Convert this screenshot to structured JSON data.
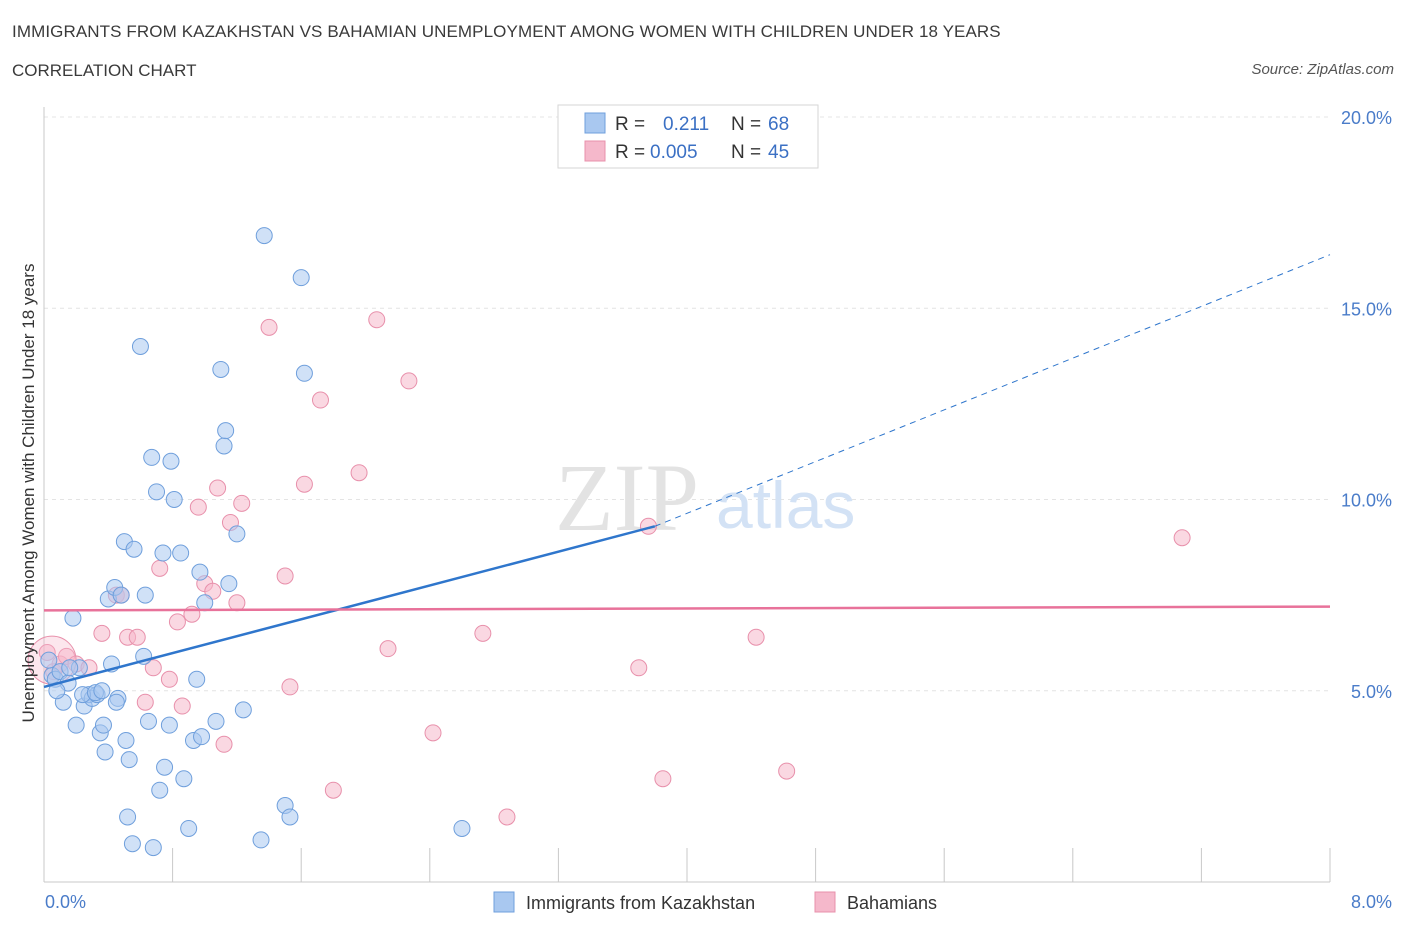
{
  "header": {
    "title": "IMMIGRANTS FROM KAZAKHSTAN VS BAHAMIAN UNEMPLOYMENT AMONG WOMEN WITH CHILDREN UNDER 18 YEARS",
    "subtitle": "CORRELATION CHART",
    "source": "Source: ZipAtlas.com"
  },
  "watermark": {
    "part1": "ZIP",
    "part2": "atlas"
  },
  "legend": {
    "r_label": "R =",
    "n_label": "N =",
    "rows": [
      {
        "r": "0.211",
        "n": "68",
        "color": "#a9c8f0"
      },
      {
        "r": "0.005",
        "n": "45",
        "color": "#f5b8cb"
      }
    ]
  },
  "bottom_legend": [
    "Immigrants from Kazakhstan",
    "Bahamians"
  ],
  "colors": {
    "blue_fill": "#a9c8f0",
    "blue_stroke": "#6f9fdc",
    "blue_line": "#2f76cc",
    "pink_fill": "#f5b8cb",
    "pink_stroke": "#e890ab",
    "pink_line": "#e8729a"
  },
  "chart_data": {
    "type": "scatter",
    "title": "IMMIGRANTS FROM KAZAKHSTAN VS BAHAMIAN UNEMPLOYMENT AMONG WOMEN WITH CHILDREN UNDER 18 YEARS",
    "xlabel": "",
    "ylabel": "Unemployment Among Women with Children Under 18 years",
    "xlim": [
      0,
      8
    ],
    "ylim": [
      0,
      20
    ],
    "x_tick_labels": [
      "0.0%",
      "8.0%"
    ],
    "y_ticks": [
      5,
      10,
      15,
      20
    ],
    "y_tick_labels": [
      "5.0%",
      "10.0%",
      "15.0%",
      "20.0%"
    ],
    "grid": true,
    "series": [
      {
        "name": "Immigrants from Kazakhstan",
        "points": [
          [
            0.05,
            5.4
          ],
          [
            0.07,
            5.3
          ],
          [
            0.1,
            5.5
          ],
          [
            0.12,
            4.7
          ],
          [
            0.15,
            5.2
          ],
          [
            0.18,
            6.9
          ],
          [
            0.2,
            4.1
          ],
          [
            0.22,
            5.6
          ],
          [
            0.25,
            4.6
          ],
          [
            0.28,
            4.9
          ],
          [
            0.3,
            4.8
          ],
          [
            0.33,
            4.9
          ],
          [
            0.35,
            3.9
          ],
          [
            0.37,
            4.1
          ],
          [
            0.38,
            3.4
          ],
          [
            0.4,
            7.4
          ],
          [
            0.42,
            5.7
          ],
          [
            0.44,
            7.7
          ],
          [
            0.46,
            4.8
          ],
          [
            0.48,
            7.5
          ],
          [
            0.5,
            8.9
          ],
          [
            0.51,
            3.7
          ],
          [
            0.52,
            1.7
          ],
          [
            0.53,
            3.2
          ],
          [
            0.55,
            1.0
          ],
          [
            0.56,
            8.7
          ],
          [
            0.6,
            14.0
          ],
          [
            0.62,
            5.9
          ],
          [
            0.63,
            7.5
          ],
          [
            0.65,
            4.2
          ],
          [
            0.67,
            11.1
          ],
          [
            0.68,
            0.9
          ],
          [
            0.7,
            10.2
          ],
          [
            0.72,
            2.4
          ],
          [
            0.74,
            8.6
          ],
          [
            0.75,
            3.0
          ],
          [
            0.78,
            4.1
          ],
          [
            0.79,
            11.0
          ],
          [
            0.81,
            10.0
          ],
          [
            0.85,
            8.6
          ],
          [
            0.87,
            2.7
          ],
          [
            0.9,
            1.4
          ],
          [
            0.93,
            3.7
          ],
          [
            0.95,
            5.3
          ],
          [
            0.97,
            8.1
          ],
          [
            0.98,
            3.8
          ],
          [
            1.0,
            7.3
          ],
          [
            1.07,
            4.2
          ],
          [
            1.1,
            13.4
          ],
          [
            1.12,
            11.4
          ],
          [
            1.13,
            11.8
          ],
          [
            1.15,
            7.8
          ],
          [
            1.2,
            9.1
          ],
          [
            1.24,
            4.5
          ],
          [
            1.35,
            1.1
          ],
          [
            1.37,
            16.9
          ],
          [
            1.5,
            2.0
          ],
          [
            1.53,
            1.7
          ],
          [
            1.6,
            15.8
          ],
          [
            1.62,
            13.3
          ],
          [
            2.6,
            1.4
          ],
          [
            0.03,
            5.8
          ],
          [
            0.08,
            5.0
          ],
          [
            0.16,
            5.6
          ],
          [
            0.24,
            4.9
          ],
          [
            0.32,
            4.95
          ],
          [
            0.36,
            5.0
          ],
          [
            0.45,
            4.7
          ]
        ]
      },
      {
        "name": "Bahamians",
        "points": [
          [
            0.02,
            6.0
          ],
          [
            0.06,
            5.5
          ],
          [
            0.1,
            5.7
          ],
          [
            0.14,
            5.9
          ],
          [
            0.2,
            5.7
          ],
          [
            0.28,
            5.6
          ],
          [
            0.36,
            6.5
          ],
          [
            0.45,
            7.5
          ],
          [
            0.48,
            7.5
          ],
          [
            0.52,
            6.4
          ],
          [
            0.58,
            6.4
          ],
          [
            0.63,
            4.7
          ],
          [
            0.68,
            5.6
          ],
          [
            0.72,
            8.2
          ],
          [
            0.78,
            5.3
          ],
          [
            0.83,
            6.8
          ],
          [
            0.86,
            4.6
          ],
          [
            0.92,
            7.0
          ],
          [
            0.96,
            9.8
          ],
          [
            1.0,
            7.8
          ],
          [
            1.05,
            7.6
          ],
          [
            1.08,
            10.3
          ],
          [
            1.12,
            3.6
          ],
          [
            1.16,
            9.4
          ],
          [
            1.2,
            7.3
          ],
          [
            1.23,
            9.9
          ],
          [
            1.4,
            14.5
          ],
          [
            1.5,
            8.0
          ],
          [
            1.53,
            5.1
          ],
          [
            1.62,
            10.4
          ],
          [
            1.72,
            12.6
          ],
          [
            1.8,
            2.4
          ],
          [
            1.96,
            10.7
          ],
          [
            2.07,
            14.7
          ],
          [
            2.14,
            6.1
          ],
          [
            2.27,
            13.1
          ],
          [
            2.42,
            3.9
          ],
          [
            2.73,
            6.5
          ],
          [
            2.88,
            1.7
          ],
          [
            3.7,
            5.6
          ],
          [
            3.76,
            9.3
          ],
          [
            3.85,
            2.7
          ],
          [
            4.43,
            6.4
          ],
          [
            4.62,
            2.9
          ],
          [
            7.08,
            9.0
          ]
        ]
      }
    ],
    "trend_lines": [
      {
        "series": "Immigrants from Kazakhstan",
        "x": [
          0,
          3.8
        ],
        "y": [
          5.1,
          9.3
        ],
        "dashed_extension": {
          "x": [
            3.8,
            8.0
          ],
          "y": [
            9.3,
            16.4
          ]
        }
      },
      {
        "series": "Bahamians",
        "x": [
          0,
          8.0
        ],
        "y": [
          7.1,
          7.2
        ]
      }
    ]
  }
}
